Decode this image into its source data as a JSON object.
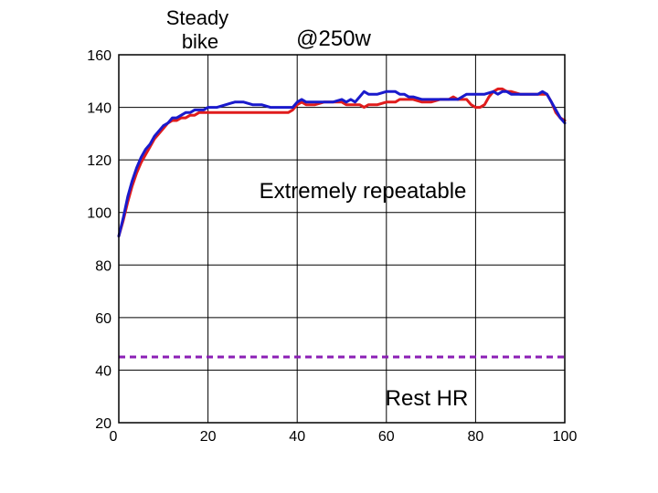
{
  "chart_data": {
    "type": "line",
    "title": "",
    "xlabel": "",
    "ylabel": "",
    "xlim": [
      0,
      100
    ],
    "ylim": [
      20,
      160
    ],
    "xticks": [
      0,
      20,
      40,
      60,
      80,
      100
    ],
    "yticks": [
      20,
      40,
      60,
      80,
      100,
      120,
      140,
      160
    ],
    "grid": true,
    "annotations": [
      {
        "id": "steady",
        "text": "Steady\nbike"
      },
      {
        "id": "power",
        "text": "@250w"
      },
      {
        "id": "repeatable",
        "text": "Extremely repeatable"
      },
      {
        "id": "rest",
        "text": "Rest HR"
      }
    ],
    "reference_lines": [
      {
        "id": "rest-hr",
        "y": 45,
        "color": "#8b1fb5",
        "style": "dashed"
      }
    ],
    "series": [
      {
        "id": "red",
        "color": "#e01c1c",
        "x": [
          0,
          1,
          2,
          3,
          4,
          5,
          6,
          7,
          8,
          9,
          10,
          11,
          12,
          13,
          14,
          15,
          16,
          17,
          18,
          19,
          20,
          22,
          24,
          26,
          28,
          30,
          32,
          34,
          36,
          38,
          39,
          40,
          41,
          42,
          44,
          46,
          48,
          50,
          51,
          52,
          53,
          54,
          55,
          56,
          58,
          60,
          61,
          62,
          63,
          64,
          65,
          66,
          68,
          70,
          72,
          74,
          75,
          76,
          77,
          78,
          79,
          80,
          81,
          82,
          83,
          84,
          85,
          86,
          87,
          88,
          90,
          92,
          94,
          95,
          96,
          97,
          98,
          99,
          100
        ],
        "y": [
          91,
          97,
          104,
          110,
          115,
          119,
          122,
          125,
          128,
          130,
          132,
          134,
          135,
          135,
          136,
          136,
          137,
          137,
          138,
          138,
          138,
          138,
          138,
          138,
          138,
          138,
          138,
          138,
          138,
          138,
          139,
          141,
          142,
          141,
          141,
          142,
          142,
          142,
          141,
          141,
          141,
          141,
          140,
          141,
          141,
          142,
          142,
          142,
          143,
          143,
          143,
          143,
          142,
          142,
          143,
          143,
          144,
          143,
          143,
          143,
          141,
          140,
          140,
          141,
          144,
          146,
          147,
          147,
          146,
          146,
          145,
          145,
          145,
          145,
          145,
          142,
          138,
          136,
          135
        ]
      },
      {
        "id": "blue",
        "color": "#1a1acc",
        "x": [
          0,
          1,
          2,
          3,
          4,
          5,
          6,
          7,
          8,
          9,
          10,
          11,
          12,
          13,
          14,
          15,
          16,
          17,
          18,
          19,
          20,
          22,
          24,
          26,
          27,
          28,
          30,
          32,
          34,
          36,
          38,
          39,
          40,
          41,
          42,
          44,
          46,
          48,
          50,
          51,
          52,
          53,
          54,
          55,
          56,
          58,
          60,
          62,
          63,
          64,
          65,
          66,
          68,
          70,
          72,
          74,
          76,
          78,
          80,
          82,
          84,
          85,
          86,
          87,
          88,
          90,
          92,
          94,
          95,
          96,
          97,
          98,
          99,
          100
        ],
        "y": [
          91,
          98,
          106,
          112,
          117,
          121,
          124,
          126,
          129,
          131,
          133,
          134,
          136,
          136,
          137,
          138,
          138,
          139,
          139,
          139,
          140,
          140,
          141,
          142,
          142,
          142,
          141,
          141,
          140,
          140,
          140,
          140,
          142,
          143,
          142,
          142,
          142,
          142,
          143,
          142,
          143,
          142,
          144,
          146,
          145,
          145,
          146,
          146,
          145,
          145,
          144,
          144,
          143,
          143,
          143,
          143,
          143,
          145,
          145,
          145,
          146,
          145,
          146,
          146,
          145,
          145,
          145,
          145,
          146,
          145,
          142,
          139,
          136,
          134
        ]
      }
    ]
  }
}
